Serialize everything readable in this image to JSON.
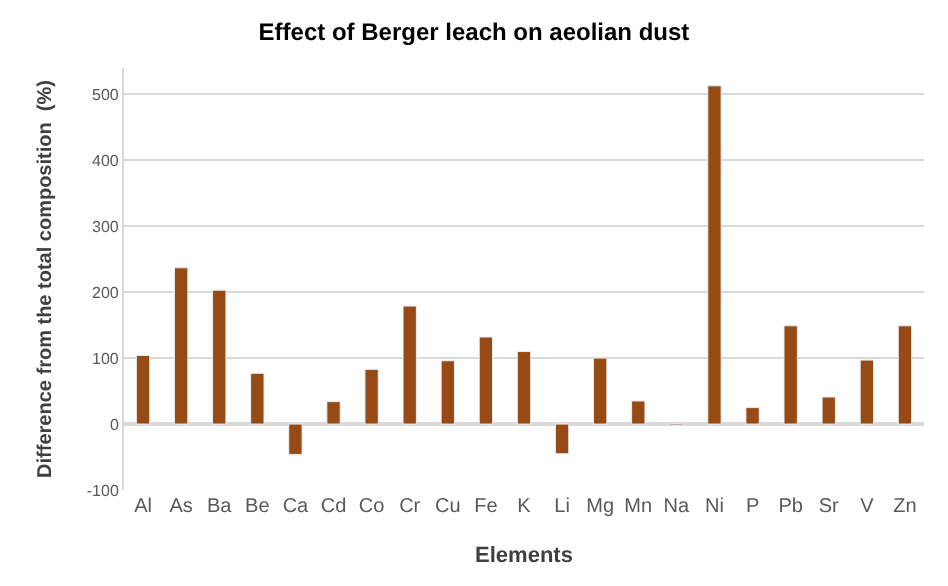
{
  "chart_data": {
    "type": "bar",
    "title": "Effect of Berger leach on aeolian dust",
    "xlabel": "Elements",
    "ylabel": "Difference from the total composition  (%)",
    "categories": [
      "Al",
      "As",
      "Ba",
      "Be",
      "Ca",
      "Cd",
      "Co",
      "Cr",
      "Cu",
      "Fe",
      "K",
      "Li",
      "Mg",
      "Mn",
      "Na",
      "Ni",
      "P",
      "Pb",
      "Sr",
      "V",
      "Zn"
    ],
    "values": [
      104,
      237,
      203,
      77,
      -46,
      34,
      83,
      179,
      96,
      132,
      110,
      -45,
      100,
      35,
      -2,
      513,
      25,
      149,
      41,
      97,
      149
    ],
    "color": "#974a14",
    "ylim": [
      -100,
      540
    ],
    "yticks": [
      -100,
      0,
      100,
      200,
      300,
      400,
      500
    ],
    "grid": "y"
  }
}
